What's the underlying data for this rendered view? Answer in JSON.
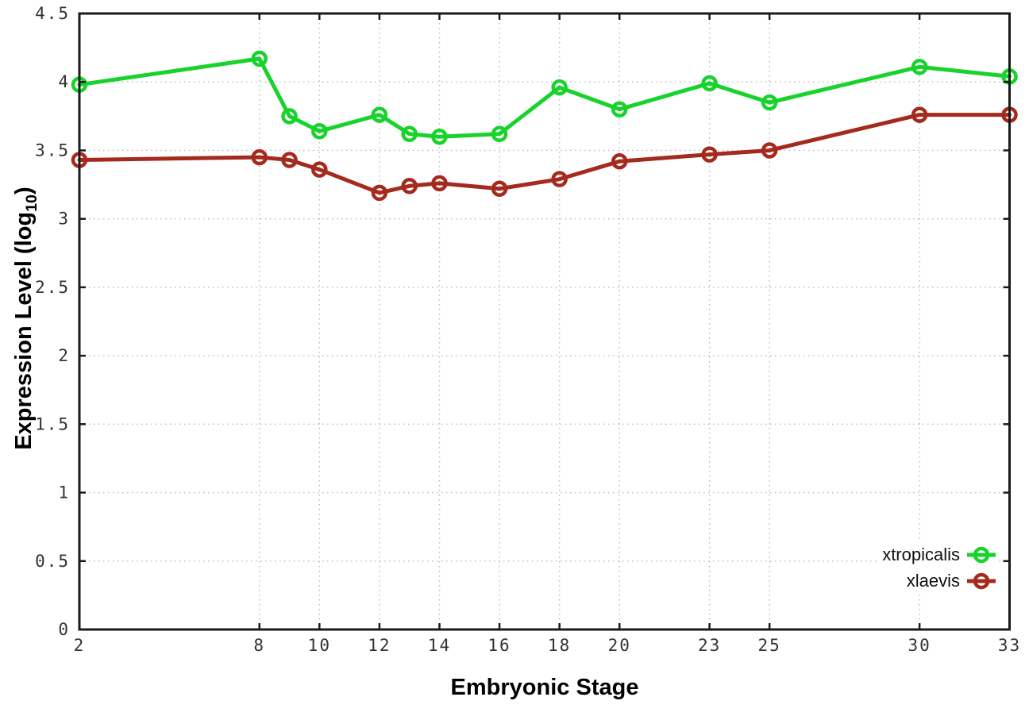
{
  "chart_data": {
    "type": "line",
    "title": "",
    "xlabel": "Embryonic Stage",
    "ylabel": "Expression Level (log10)",
    "ylabel_parts": {
      "prefix": "Expression Level (log",
      "sub": "10",
      "suffix": ")"
    },
    "xlim": [
      2,
      33
    ],
    "ylim": [
      0,
      4.5
    ],
    "x_ticks": [
      2,
      8,
      10,
      12,
      14,
      16,
      18,
      20,
      23,
      25,
      30,
      33
    ],
    "y_ticks": [
      0,
      0.5,
      1,
      1.5,
      2,
      2.5,
      3,
      3.5,
      4,
      4.5
    ],
    "grid": true,
    "grid_style": "dotted",
    "marker": "open-circle",
    "legend_position": "inside-bottom-right",
    "x": [
      2,
      8,
      9,
      10,
      12,
      13,
      14,
      16,
      18,
      20,
      23,
      25,
      30,
      33
    ],
    "series": [
      {
        "name": "xtropicalis",
        "color": "#17d32c",
        "values": [
          3.98,
          4.17,
          3.75,
          3.64,
          3.76,
          3.62,
          3.6,
          3.62,
          3.96,
          3.8,
          3.99,
          3.85,
          4.11,
          4.04
        ]
      },
      {
        "name": "xlaevis",
        "color": "#a52a1e",
        "values": [
          3.43,
          3.45,
          3.43,
          3.36,
          3.19,
          3.24,
          3.26,
          3.22,
          3.29,
          3.42,
          3.47,
          3.5,
          3.76,
          3.76
        ]
      }
    ]
  },
  "colors": {
    "background": "#ffffff",
    "axis": "#1a1a1a",
    "tick_label": "#333333",
    "grid": "#b9b9b9",
    "legend_text": "#111111"
  }
}
